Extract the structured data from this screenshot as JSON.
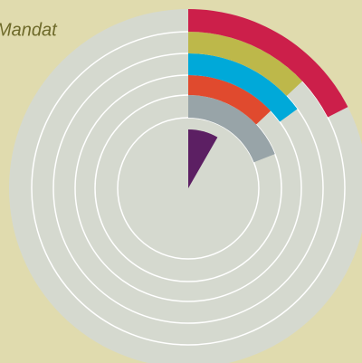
{
  "chart_data": {
    "type": "radial-bar",
    "title": "Mandat",
    "values": [
      8.3,
      19,
      13,
      15,
      13,
      17.5
    ],
    "colors": [
      "#5c1f63",
      "#98a4a8",
      "#e04a2e",
      "#00a9d9",
      "#bdb84a",
      "#cc1f4a"
    ]
  }
}
